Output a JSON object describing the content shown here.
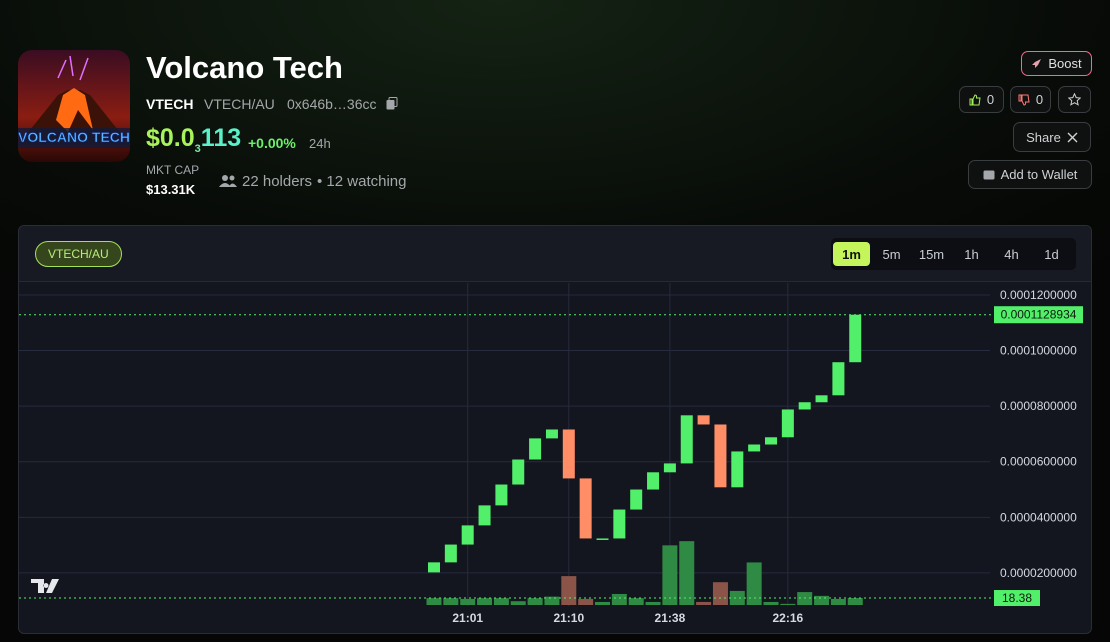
{
  "header": {
    "name": "Volcano Tech",
    "logo_text": "VOLCANO TECH",
    "symbol": "VTECH",
    "pair": "VTECH/AU",
    "address": "0x646b…36cc",
    "price": {
      "prefix": "$0.0",
      "zero_count": "3",
      "digits": "113"
    },
    "change": "+0.00%",
    "period": "24h",
    "mkt_cap_label": "MKT CAP",
    "mkt_cap": "$13.31K",
    "holders": "22 holders",
    "watching": "• 12 watching"
  },
  "actions": {
    "boost": "Boost",
    "likes": "0",
    "dislikes": "0",
    "share": "Share",
    "wallet": "Add to Wallet"
  },
  "chart_data": {
    "type": "candlestick",
    "pair_badge": "VTECH/AU",
    "intervals": [
      "1m",
      "5m",
      "15m",
      "1h",
      "4h",
      "1d"
    ],
    "active_interval": "1m",
    "categories": [
      null,
      null,
      "21:01",
      null,
      null,
      null,
      null,
      null,
      "21:10",
      null,
      null,
      null,
      null,
      null,
      "21:38",
      null,
      null,
      null,
      null,
      null,
      null,
      "22:16",
      null,
      null,
      null,
      null
    ],
    "open": [
      2.02e-05,
      2.38e-05,
      3.02e-05,
      3.71e-05,
      4.43e-05,
      5.18e-05,
      6.08e-05,
      6.84e-05,
      7.16e-05,
      5.4e-05,
      3.24e-05,
      3.24e-05,
      4.28e-05,
      5e-05,
      5.62e-05,
      5.94e-05,
      7.67e-05,
      7.34e-05,
      5.08e-05,
      6.37e-05,
      6.62e-05,
      6.88e-05,
      7.88e-05,
      8.14e-05,
      8.39e-05,
      9.58e-05
    ],
    "close": [
      2.38e-05,
      3.02e-05,
      3.71e-05,
      4.43e-05,
      5.18e-05,
      6.08e-05,
      6.84e-05,
      7.16e-05,
      5.4e-05,
      3.24e-05,
      3.24e-05,
      4.28e-05,
      5e-05,
      5.62e-05,
      5.94e-05,
      7.67e-05,
      7.34e-05,
      5.08e-05,
      6.37e-05,
      6.62e-05,
      6.88e-05,
      7.88e-05,
      8.14e-05,
      8.39e-05,
      9.58e-05,
      0.0001128934
    ],
    "volume": [
      18,
      18,
      16,
      18,
      18,
      10,
      18,
      22,
      76,
      16,
      8,
      29,
      18,
      8,
      157,
      168,
      8,
      60,
      37,
      112,
      8,
      3,
      34,
      24,
      16,
      18.38
    ],
    "volume_ylim": [
      0,
      250
    ],
    "ylim": [
      8.1e-06,
      0.0001243
    ],
    "yticks": [
      {
        "value": 2e-05,
        "label": "0.0000200000"
      },
      {
        "value": 4e-05,
        "label": "0.0000400000"
      },
      {
        "value": 6e-05,
        "label": "0.0000600000"
      },
      {
        "value": 8e-05,
        "label": "0.0000800000"
      },
      {
        "value": 0.0001,
        "label": "0.0001000000"
      },
      {
        "value": 0.00012,
        "label": "0.0001200000"
      }
    ],
    "grid": true,
    "up_color": "#52f06a",
    "down_color": "#ff8d66",
    "volume_up_color": "#2f8a43",
    "volume_down_color": "#8a5548"
  }
}
